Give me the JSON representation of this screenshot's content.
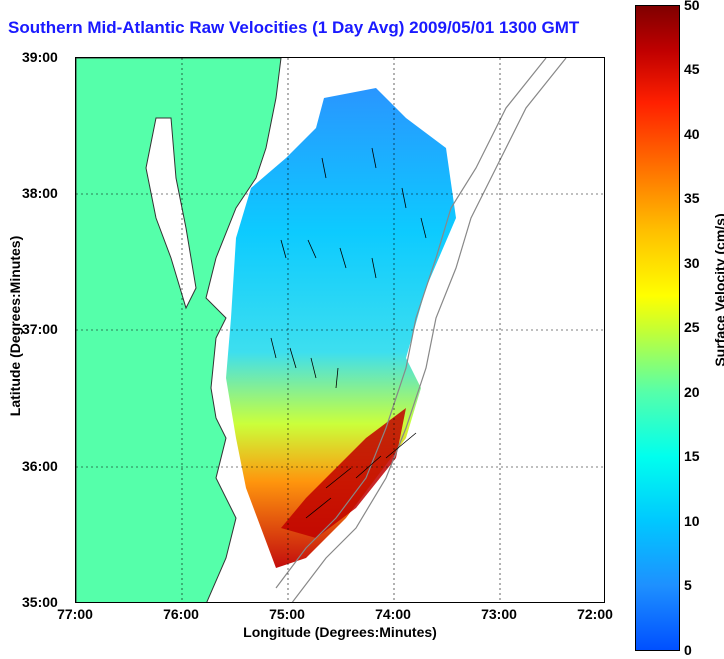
{
  "title": "Southern Mid-Atlantic Raw Velocities (1 Day Avg) 2009/05/01 1300 GMT",
  "xlabel": "Longitude (Degrees:Minutes)",
  "ylabel": "Latitude (Degrees:Minutes)",
  "colorbar_label": "Surface Velocity (cm/s)",
  "colors": {
    "title": "#1a1aff",
    "land": "#55ffaa",
    "coastline": "#888888"
  },
  "map": {
    "lon_ticks": [
      "77:00",
      "76:00",
      "75:00",
      "74:00",
      "73:00",
      "72:00"
    ],
    "lat_ticks": [
      "39:00",
      "38:00",
      "37:00",
      "36:00",
      "35:00"
    ],
    "colorbar_ticks": [
      "50",
      "45",
      "40",
      "35",
      "30",
      "25",
      "20",
      "15",
      "10",
      "5",
      "0"
    ],
    "lon_range": [
      -77,
      -72
    ],
    "lat_range": [
      35,
      39
    ],
    "grid": true
  }
}
